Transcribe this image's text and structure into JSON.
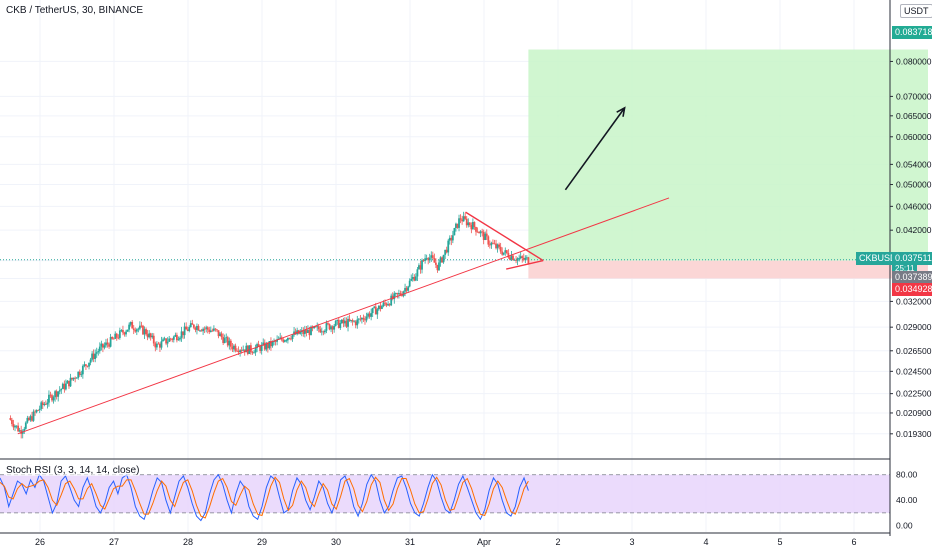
{
  "header": {
    "title": "CKB / TetherUS, 30, BINANCE",
    "currency": "USDT"
  },
  "indicator": {
    "label": "Stoch RSI (3, 3, 14, 14, close)"
  },
  "colors": {
    "up": "#26a69a",
    "down": "#ef5350",
    "trendline": "#f23645",
    "profit_zone": "#c8f5c8",
    "loss_zone": "#fbd2d2",
    "stoch_k": "#2962ff",
    "stoch_d": "#ff6d00",
    "stoch_band": "#e6d2fb"
  },
  "tags": {
    "symbol": "CKBUSDT",
    "countdown": "25:11",
    "last_price": "0.037511",
    "target": "0.083718",
    "entry": "0.037389",
    "stop": "0.034928"
  },
  "chart_data": [
    {
      "type": "candlestick",
      "title": "CKB / TetherUS, 30, BINANCE",
      "y_scale": "log",
      "y_ticks": [
        "0.080000",
        "0.070000",
        "0.065000",
        "0.060000",
        "0.054000",
        "0.050000",
        "0.046000",
        "0.042000",
        "0.037389",
        "0.034928",
        "0.032000",
        "0.029000",
        "0.026500",
        "0.024500",
        "0.022500",
        "0.020900",
        "0.019300"
      ],
      "x_ticks": [
        "26",
        "27",
        "28",
        "29",
        "30",
        "31",
        "Apr",
        "2",
        "3",
        "4",
        "5",
        "6"
      ],
      "ylim": [
        0.0178,
        0.1
      ],
      "grid": true,
      "price_path": [
        {
          "day": 25.6,
          "price": 0.0205
        },
        {
          "day": 25.75,
          "price": 0.0195
        },
        {
          "day": 26.0,
          "price": 0.0212
        },
        {
          "day": 26.2,
          "price": 0.0224
        },
        {
          "day": 26.4,
          "price": 0.0234
        },
        {
          "day": 26.6,
          "price": 0.0248
        },
        {
          "day": 26.8,
          "price": 0.0265
        },
        {
          "day": 27.0,
          "price": 0.0276
        },
        {
          "day": 27.25,
          "price": 0.0292
        },
        {
          "day": 27.45,
          "price": 0.0285
        },
        {
          "day": 27.6,
          "price": 0.027
        },
        {
          "day": 27.9,
          "price": 0.0282
        },
        {
          "day": 28.1,
          "price": 0.0292
        },
        {
          "day": 28.4,
          "price": 0.0285
        },
        {
          "day": 28.6,
          "price": 0.027
        },
        {
          "day": 28.85,
          "price": 0.0266
        },
        {
          "day": 29.1,
          "price": 0.027
        },
        {
          "day": 29.4,
          "price": 0.0281
        },
        {
          "day": 29.7,
          "price": 0.0286
        },
        {
          "day": 30.0,
          "price": 0.0293
        },
        {
          "day": 30.3,
          "price": 0.0296
        },
        {
          "day": 30.6,
          "price": 0.0312
        },
        {
          "day": 30.9,
          "price": 0.033
        },
        {
          "day": 31.1,
          "price": 0.0355
        },
        {
          "day": 31.25,
          "price": 0.0383
        },
        {
          "day": 31.4,
          "price": 0.0365
        },
        {
          "day": 31.55,
          "price": 0.04
        },
        {
          "day": 31.7,
          "price": 0.044
        },
        {
          "day": 31.9,
          "price": 0.0425
        },
        {
          "day": 32.1,
          "price": 0.04
        },
        {
          "day": 32.3,
          "price": 0.0385
        },
        {
          "day": 32.5,
          "price": 0.0376
        },
        {
          "day": 32.6,
          "price": 0.03751
        }
      ],
      "drawings": {
        "rising_trendline": [
          {
            "day": 25.7,
            "price": 0.0193
          },
          {
            "day": 34.5,
            "price": 0.0475
          }
        ],
        "descending_line": [
          {
            "day": 31.75,
            "price": 0.045
          },
          {
            "day": 32.8,
            "price": 0.0374
          }
        ],
        "apex_line": [
          {
            "day": 32.3,
            "price": 0.0362
          },
          {
            "day": 32.8,
            "price": 0.0374
          }
        ],
        "target_zone": {
          "from_day": 32.6,
          "to_day": 38.0,
          "low": 0.037389,
          "high": 0.083718
        },
        "stop_zone": {
          "from_day": 32.6,
          "to_day": 38.0,
          "low": 0.034928,
          "high": 0.037389
        },
        "arrow": [
          {
            "day": 33.1,
            "price": 0.049
          },
          {
            "day": 33.9,
            "price": 0.067
          }
        ]
      }
    },
    {
      "type": "line",
      "title": "Stoch RSI (3, 3, 14, 14, close)",
      "y_ticks": [
        "80.00",
        "40.00",
        "0.00"
      ],
      "ylim": [
        -10,
        100
      ],
      "bands": [
        20,
        80
      ],
      "series": [
        {
          "values": [
            75,
            60,
            30,
            50,
            70,
            65,
            50,
            72,
            60,
            80,
            70,
            45,
            20,
            35,
            70,
            78,
            60,
            40,
            30,
            60,
            75,
            55,
            30,
            20,
            35,
            60,
            70,
            50,
            75,
            80,
            60,
            30,
            15,
            10,
            30,
            55,
            75,
            68,
            40,
            20,
            45,
            70,
            78,
            60,
            35,
            15,
            8,
            20,
            50,
            72,
            80,
            65,
            40,
            20,
            50,
            70,
            60,
            30,
            15,
            10,
            30,
            60,
            78,
            72,
            45,
            20,
            25,
            55,
            75,
            65,
            40,
            25,
            45,
            70,
            60,
            35,
            20,
            40,
            72,
            78,
            60,
            30,
            15,
            35,
            65,
            80,
            70,
            40,
            20,
            30,
            55,
            75,
            78,
            60,
            35,
            20,
            15,
            35,
            60,
            80,
            70,
            45,
            25,
            20,
            40,
            65,
            78,
            60,
            40,
            20,
            10,
            25,
            55,
            75,
            65,
            40,
            20,
            15,
            30,
            60,
            75,
            55
          ]
        },
        {
          "values": [
            68,
            62,
            45,
            42,
            58,
            66,
            60,
            62,
            64,
            70,
            72,
            60,
            40,
            32,
            48,
            66,
            70,
            58,
            42,
            42,
            58,
            66,
            50,
            32,
            26,
            42,
            58,
            62,
            62,
            72,
            72,
            55,
            35,
            18,
            18,
            35,
            55,
            70,
            62,
            40,
            30,
            50,
            68,
            72,
            55,
            32,
            15,
            12,
            30,
            52,
            70,
            74,
            60,
            38,
            32,
            48,
            62,
            56,
            34,
            18,
            16,
            38,
            62,
            76,
            68,
            42,
            24,
            32,
            56,
            70,
            60,
            38,
            30,
            50,
            66,
            56,
            34,
            26,
            46,
            70,
            74,
            58,
            32,
            22,
            38,
            64,
            76,
            68,
            40,
            24,
            34,
            58,
            74,
            74,
            56,
            34,
            20,
            22,
            42,
            66,
            76,
            64,
            40,
            24,
            26,
            46,
            68,
            74,
            58,
            36,
            18,
            16,
            34,
            58,
            70,
            60,
            40,
            22,
            18,
            36,
            58,
            70
          ]
        }
      ]
    }
  ]
}
